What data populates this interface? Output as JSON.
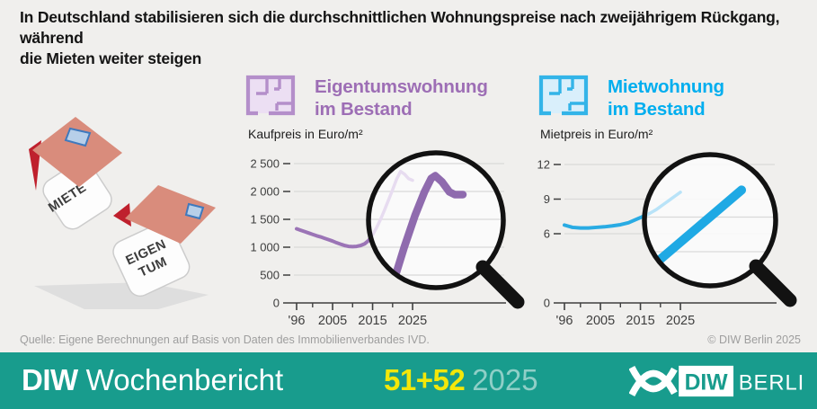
{
  "title_line1": "In Deutschland stabilisieren sich die durchschnittlichen Wohnungspreise nach zweijährigem Rückgang, während",
  "title_line2": "die Mieten weiter steigen",
  "illustration": {
    "die1_label": "MIETE",
    "die2_label_line1": "EIGEN",
    "die2_label_line2": "TUM"
  },
  "chart_data": [
    {
      "type": "line",
      "title_line1": "Eigentumswohnung",
      "title_line2": "im Bestand",
      "unit": "Kaufpreis in Euro/m²",
      "x": [
        1996,
        1997,
        1998,
        1999,
        2000,
        2001,
        2002,
        2003,
        2004,
        2005,
        2006,
        2007,
        2008,
        2009,
        2010,
        2011,
        2012,
        2013,
        2014,
        2015,
        2016,
        2017,
        2018,
        2019,
        2020,
        2021,
        2022,
        2023,
        2024,
        2025
      ],
      "values": [
        1330,
        1305,
        1280,
        1255,
        1230,
        1205,
        1185,
        1160,
        1135,
        1110,
        1080,
        1055,
        1030,
        1015,
        1010,
        1015,
        1030,
        1060,
        1120,
        1220,
        1350,
        1500,
        1670,
        1850,
        2030,
        2220,
        2360,
        2310,
        2230,
        2200
      ],
      "ylim": [
        0,
        2500
      ],
      "yticks": [
        {
          "v": 0,
          "label": "0"
        },
        {
          "v": 500,
          "label": "500"
        },
        {
          "v": 1000,
          "label": "1 000"
        },
        {
          "v": 1500,
          "label": "1 500"
        },
        {
          "v": 2000,
          "label": "2 000"
        },
        {
          "v": 2500,
          "label": "2 500"
        }
      ],
      "xticks": [
        {
          "x": 1996,
          "label": "'96"
        },
        {
          "x": 2005,
          "label": "2005"
        },
        {
          "x": 2015,
          "label": "2015"
        },
        {
          "x": 2025,
          "label": "2025"
        }
      ],
      "xticks_minor": [
        2000,
        2010,
        2020
      ],
      "color": "#9b74b6",
      "pale_color": "#e7dcf0",
      "magnifier": {
        "description": "Lupe: Kaufpreise stabilisieren sich nach zweijährigem Rückgang",
        "trace_color": "#8f6bae",
        "trace_width": 8.5,
        "grid_offset": 0,
        "trace_rel": [
          [
            -0.72,
            1.02
          ],
          [
            -0.6,
            0.82
          ],
          [
            -0.47,
            0.4
          ],
          [
            -0.31,
            -0.07
          ],
          [
            -0.17,
            -0.42
          ],
          [
            -0.07,
            -0.62
          ],
          [
            -0.01,
            -0.66
          ],
          [
            0.09,
            -0.57
          ],
          [
            0.2,
            -0.42
          ],
          [
            0.28,
            -0.38
          ],
          [
            0.4,
            -0.38
          ]
        ]
      }
    },
    {
      "type": "line",
      "title_line1": "Mietwohnung",
      "title_line2": "im Bestand",
      "unit": "Mietpreis in Euro/m²",
      "x": [
        1996,
        1998,
        2000,
        2002,
        2004,
        2006,
        2008,
        2010,
        2012,
        2014,
        2015,
        2016,
        2017,
        2018,
        2019,
        2020,
        2021,
        2022,
        2023,
        2024,
        2025
      ],
      "values": [
        6.75,
        6.55,
        6.5,
        6.5,
        6.55,
        6.6,
        6.68,
        6.78,
        6.95,
        7.25,
        7.4,
        7.55,
        7.7,
        7.9,
        8.1,
        8.35,
        8.6,
        8.85,
        9.1,
        9.35,
        9.6
      ],
      "ylim": [
        0,
        12
      ],
      "yticks": [
        {
          "v": 0,
          "label": "0"
        },
        {
          "v": 6,
          "label": "6"
        },
        {
          "v": 9,
          "label": "9"
        },
        {
          "v": 12,
          "label": "12"
        }
      ],
      "xticks": [
        {
          "x": 1996,
          "label": "'96"
        },
        {
          "x": 2005,
          "label": "2005"
        },
        {
          "x": 2015,
          "label": "2015"
        },
        {
          "x": 2025,
          "label": "2025"
        }
      ],
      "xticks_minor": [
        2000,
        2010,
        2020
      ],
      "color": "#29abe3",
      "pale_color": "#b9e3f8",
      "magnifier": {
        "description": "Lupe: Mieten steigen weiter",
        "trace_color": "#1fa9e4",
        "trace_width": 10,
        "grid_offset": 20,
        "grid_lines": [
          9,
          6
        ],
        "trace_rel": [
          [
            -0.88,
            0.7
          ],
          [
            0.48,
            -0.46
          ]
        ]
      }
    }
  ],
  "source": "Quelle: Eigene Berechnungen auf Basis von Daten des Immobilienverbandes IVD.",
  "copyright": "© DIW Berlin 2025",
  "footer": {
    "brand_bold": "DIW",
    "brand_rest": "Wochenbericht",
    "issue": "51+52",
    "year": "2025",
    "logo_diw": "DIW",
    "logo_berlin": "BERLIN"
  },
  "colors": {
    "bg": "#f0efed",
    "title_text": "#141414",
    "source_text": "#9e9e9e",
    "grid": "#d9d9d9",
    "axis": "#3f3f3f",
    "tick_text": "#3d3d3d",
    "glass_ring": "#121212",
    "glass_fill": "#fcfcfc",
    "purple_heading": "#9d6eb5",
    "purple_icon": "#b48fca",
    "purple_icon_fill": "#ecdff3",
    "blue_heading": "#00aeef",
    "blue_icon": "#33b4e8",
    "blue_icon_fill": "#d9effb",
    "teal": "#189c8d",
    "issue_yellow": "#f3e70a",
    "issue_year": "#8fcfc7",
    "roof": "#d98c7c",
    "gable_red": "#bf202d",
    "cube": "#fdfdfd",
    "cube_edge": "#cccccc",
    "die_text": "#3c3c3c",
    "window_fill": "#b7cfe9",
    "window_stroke": "#3f79bd",
    "shadow": "#dedede"
  }
}
